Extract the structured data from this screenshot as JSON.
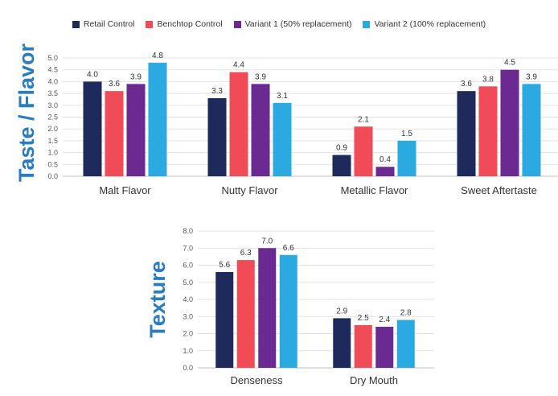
{
  "legend": [
    {
      "name": "Retail Control",
      "color": "#1f2a5c"
    },
    {
      "name": "Benchtop Control",
      "color": "#f04b57"
    },
    {
      "name": "Variant 1 (50% replacement)",
      "color": "#6b2a91"
    },
    {
      "name": "Variant 2 (100% replacement)",
      "color": "#2aaae1"
    }
  ],
  "chart_data": [
    {
      "type": "bar",
      "side_label": "Taste / Flavor",
      "categories": [
        "Malt Flavor",
        "Nutty Flavor",
        "Metallic Flavor",
        "Sweet Aftertaste"
      ],
      "ylim": [
        0,
        5.0
      ],
      "yticks": [
        "0.0",
        "0.5",
        "1.0",
        "1.5",
        "2.0",
        "2.5",
        "3.0",
        "3.5",
        "4.0",
        "4.5",
        "5.0"
      ],
      "grid": true,
      "legend_position": "top",
      "series": [
        {
          "name": "Retail Control",
          "color": "#1f2a5c",
          "values": [
            4.0,
            3.3,
            0.9,
            3.6
          ],
          "labels": [
            "4.0",
            "3.3",
            "0.9",
            "3.6"
          ]
        },
        {
          "name": "Benchtop Control",
          "color": "#f04b57",
          "values": [
            3.6,
            4.4,
            2.1,
            3.8
          ],
          "labels": [
            "3.6",
            "4.4",
            "2.1",
            "3.8"
          ]
        },
        {
          "name": "Variant 1 (50% replacement)",
          "color": "#6b2a91",
          "values": [
            3.9,
            3.9,
            0.4,
            4.5
          ],
          "labels": [
            "3.9",
            "3.9",
            "0.4",
            "4.5"
          ]
        },
        {
          "name": "Variant 2 (100% replacement)",
          "color": "#2aaae1",
          "values": [
            4.8,
            3.1,
            1.5,
            3.9
          ],
          "labels": [
            "4.8",
            "3.1",
            "1.5",
            "3.9"
          ]
        }
      ]
    },
    {
      "type": "bar",
      "side_label": "Texture",
      "categories": [
        "Denseness",
        "Dry Mouth"
      ],
      "ylim": [
        0,
        8.0
      ],
      "yticks": [
        "0.0",
        "1.0",
        "2.0",
        "3.0",
        "4.0",
        "5.0",
        "6.0",
        "7.0",
        "8.0"
      ],
      "grid": true,
      "series": [
        {
          "name": "Retail Control",
          "color": "#1f2a5c",
          "values": [
            5.6,
            2.9
          ],
          "labels": [
            "5.6",
            "2.9"
          ]
        },
        {
          "name": "Benchtop Control",
          "color": "#f04b57",
          "values": [
            6.3,
            2.5
          ],
          "labels": [
            "6.3",
            "2.5"
          ]
        },
        {
          "name": "Variant 1 (50% replacement)",
          "color": "#6b2a91",
          "values": [
            7.0,
            2.4
          ],
          "labels": [
            "7.0",
            "2.4"
          ]
        },
        {
          "name": "Variant 2 (100% replacement)",
          "color": "#2aaae1",
          "values": [
            6.6,
            2.8
          ],
          "labels": [
            "6.6",
            "2.8"
          ]
        }
      ]
    }
  ]
}
